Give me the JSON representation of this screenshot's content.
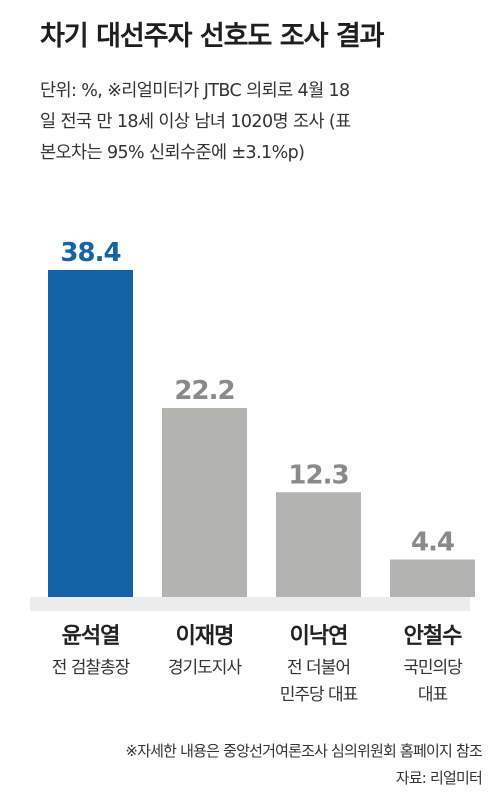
{
  "title": "차기 대선주자 선호도 조사 결과",
  "subtitle_lines": [
    "단위: %, ※리얼미터가 JTBC 의뢰로 4월 18",
    "일 전국 만 18세 이상 남녀 1020명 조사 (표",
    "본오차는 95% 신뢰수준에 ±3.1%p)"
  ],
  "chart_data": {
    "type": "bar",
    "categories": [
      "윤석열",
      "이재명",
      "이낙연",
      "안철수"
    ],
    "category_sublabels": [
      [
        "전 검찰총장"
      ],
      [
        "경기도지사"
      ],
      [
        "전 더불어",
        "민주당 대표"
      ],
      [
        "국민의당",
        "대표"
      ]
    ],
    "values": [
      38.4,
      22.2,
      12.3,
      4.4
    ],
    "value_labels": [
      "38.4",
      "22.2",
      "12.3",
      "4.4"
    ],
    "ylim": [
      0,
      38.4
    ],
    "highlight_index": 0,
    "colors": {
      "highlight": "#1463a6",
      "bar": "#b3b3b1",
      "highlight_label": "#1463a6",
      "label": "#8a8a8a"
    }
  },
  "footnotes": {
    "note": "※자세한 내용은 중앙선거여론조사 심의위원회 홈페이지 참조",
    "source": "자료: 리얼미터"
  }
}
